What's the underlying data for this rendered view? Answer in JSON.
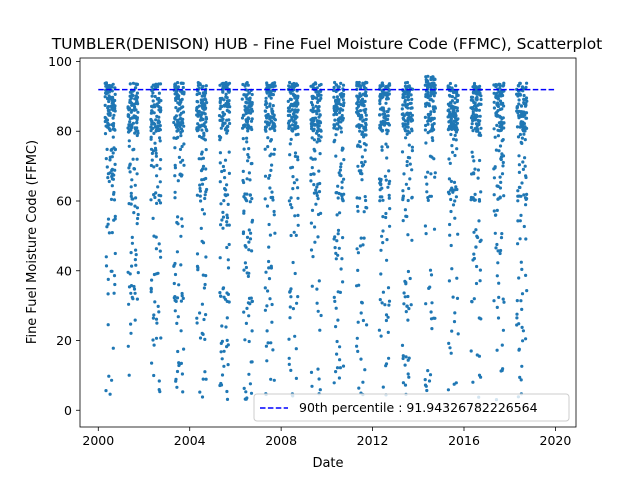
{
  "chart_data": {
    "type": "scatter",
    "title": "TUMBLER(DENISON) HUB - Fine Fuel Moisture Code (FFMC), Scatterplot",
    "xlabel": "Date",
    "ylabel": "Fine Fuel Moisture Code (FFMC)",
    "xlim": [
      1999.2,
      2020.9
    ],
    "ylim": [
      -4.8,
      101.0
    ],
    "xticks": [
      2000,
      2004,
      2008,
      2012,
      2016,
      2020
    ],
    "xtick_labels": [
      "2000",
      "2004",
      "2008",
      "2012",
      "2016",
      "2020"
    ],
    "yticks": [
      0,
      20,
      40,
      60,
      80,
      100
    ],
    "ytick_labels": [
      "0",
      "20",
      "40",
      "60",
      "80",
      "100"
    ],
    "grid": false,
    "legend_position": "bottom-right",
    "seasons": [
      {
        "year": 2000,
        "start": 2000.3,
        "end": 2000.75
      },
      {
        "year": 2001,
        "start": 2001.3,
        "end": 2001.75
      },
      {
        "year": 2002,
        "start": 2002.3,
        "end": 2002.75
      },
      {
        "year": 2003,
        "start": 2003.3,
        "end": 2003.75
      },
      {
        "year": 2004,
        "start": 2004.3,
        "end": 2004.75
      },
      {
        "year": 2005,
        "start": 2005.3,
        "end": 2005.75
      },
      {
        "year": 2006,
        "start": 2006.3,
        "end": 2006.75
      },
      {
        "year": 2007,
        "start": 2007.3,
        "end": 2007.75
      },
      {
        "year": 2008,
        "start": 2008.3,
        "end": 2008.75
      },
      {
        "year": 2009,
        "start": 2009.3,
        "end": 2009.75
      },
      {
        "year": 2010,
        "start": 2010.3,
        "end": 2010.75
      },
      {
        "year": 2011,
        "start": 2011.3,
        "end": 2011.75
      },
      {
        "year": 2012,
        "start": 2012.3,
        "end": 2012.75
      },
      {
        "year": 2013,
        "start": 2013.3,
        "end": 2013.75
      },
      {
        "year": 2014,
        "start": 2014.3,
        "end": 2014.75
      },
      {
        "year": 2015,
        "start": 2015.3,
        "end": 2015.75
      },
      {
        "year": 2016,
        "start": 2016.3,
        "end": 2016.75
      },
      {
        "year": 2017,
        "start": 2017.3,
        "end": 2017.75
      },
      {
        "year": 2018,
        "start": 2018.3,
        "end": 2018.75
      }
    ],
    "series": [
      {
        "type": "scatter",
        "color": "#1f77b4",
        "points_per_season": 140
      },
      {
        "type": "hline",
        "name": "90th percentile : 91.94326782226564",
        "y": 91.94326782226564,
        "x_range": [
          2000.0,
          2020.0
        ],
        "color": "#0000ff",
        "linestyle": "dashed"
      }
    ]
  }
}
